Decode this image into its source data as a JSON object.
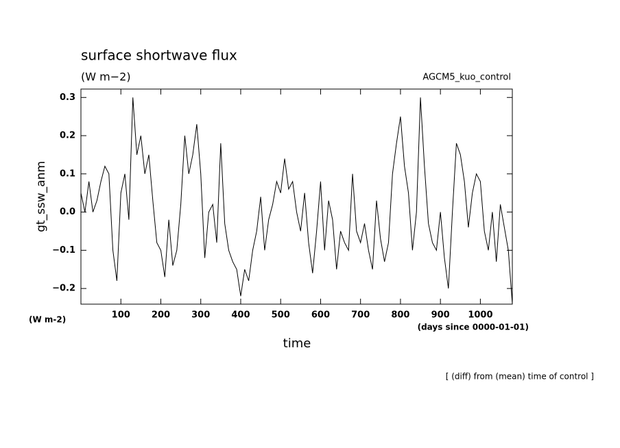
{
  "chart_data": {
    "type": "line",
    "title": "surface shortwave flux",
    "subtitle": "(W m−2)",
    "annotation_right": "AGCM5_kuo_control",
    "y_label": "gt_ssw_anm",
    "y_units": "(W m-2)",
    "x_label": "time",
    "x_units": "(days since 0000-01-01)",
    "footnote": "[ (diff) from (mean) time of control ]",
    "color": "#000000",
    "xlim": [
      0,
      1080
    ],
    "ylim": [
      -0.241,
      0.322
    ],
    "xticks": [
      100,
      200,
      300,
      400,
      500,
      600,
      700,
      800,
      900,
      1000
    ],
    "yticks": [
      {
        "value": -0.2,
        "label": "−0.2"
      },
      {
        "value": -0.1,
        "label": "−0.1"
      },
      {
        "value": 0,
        "label": "0.0"
      },
      0.1,
      0.2,
      0.3
    ],
    "series": [
      {
        "name": "gt_ssw_anm",
        "color": "#000000",
        "x": [
          0,
          10,
          20,
          30,
          40,
          50,
          60,
          70,
          80,
          90,
          100,
          110,
          120,
          130,
          140,
          150,
          160,
          170,
          180,
          190,
          200,
          210,
          220,
          230,
          240,
          250,
          260,
          270,
          280,
          290,
          300,
          310,
          320,
          330,
          340,
          350,
          360,
          370,
          380,
          390,
          400,
          410,
          420,
          430,
          440,
          450,
          460,
          470,
          480,
          490,
          500,
          510,
          520,
          530,
          540,
          550,
          560,
          570,
          580,
          590,
          600,
          610,
          620,
          630,
          640,
          650,
          660,
          670,
          680,
          690,
          700,
          710,
          720,
          730,
          740,
          750,
          760,
          770,
          780,
          790,
          800,
          810,
          820,
          830,
          840,
          850,
          860,
          870,
          880,
          890,
          900,
          910,
          920,
          930,
          940,
          950,
          960,
          970,
          980,
          990,
          1000,
          1010,
          1020,
          1030,
          1040,
          1050,
          1060,
          1070,
          1080
        ],
        "values": [
          0.05,
          0.0,
          0.08,
          0.0,
          0.03,
          0.08,
          0.12,
          0.1,
          -0.1,
          -0.18,
          0.05,
          0.1,
          -0.02,
          0.3,
          0.15,
          0.2,
          0.1,
          0.15,
          0.03,
          -0.08,
          -0.1,
          -0.17,
          -0.02,
          -0.14,
          -0.1,
          0.02,
          0.2,
          0.1,
          0.15,
          0.23,
          0.1,
          -0.12,
          0.0,
          0.02,
          -0.08,
          0.18,
          -0.03,
          -0.1,
          -0.13,
          -0.15,
          -0.22,
          -0.15,
          -0.18,
          -0.1,
          -0.05,
          0.04,
          -0.1,
          -0.02,
          0.02,
          0.08,
          0.05,
          0.14,
          0.06,
          0.08,
          0.0,
          -0.05,
          0.05,
          -0.08,
          -0.16,
          -0.05,
          0.08,
          -0.1,
          0.03,
          -0.02,
          -0.15,
          -0.05,
          -0.08,
          -0.1,
          0.1,
          -0.05,
          -0.08,
          -0.03,
          -0.1,
          -0.15,
          0.03,
          -0.07,
          -0.13,
          -0.08,
          0.1,
          0.18,
          0.25,
          0.12,
          0.05,
          -0.1,
          0.0,
          0.3,
          0.12,
          -0.03,
          -0.08,
          -0.1,
          0.0,
          -0.12,
          -0.2,
          0.0,
          0.18,
          0.15,
          0.08,
          -0.04,
          0.05,
          0.1,
          0.08,
          -0.05,
          -0.1,
          0.0,
          -0.13,
          0.02,
          -0.04,
          -0.1,
          -0.24
        ]
      }
    ]
  }
}
